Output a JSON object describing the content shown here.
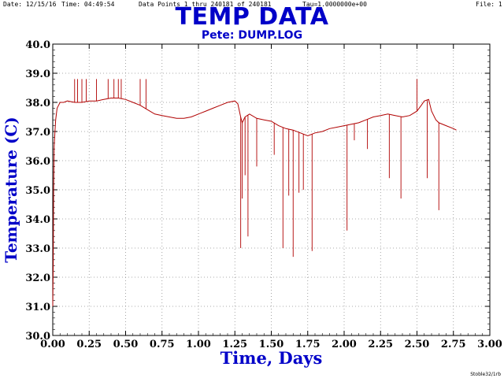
{
  "header": {
    "date": "Date: 12/15/16",
    "time": "Time: 04:49:54",
    "data_points": "Data Points 1 thru 240181 of 240181",
    "tau": "Tau=1.0000000e+00",
    "file": "File: 1"
  },
  "footer": {
    "signature": "Stoble32/1rb"
  },
  "colors": {
    "title": "#0000c8",
    "axis_label": "#0000c8",
    "line": "#b00000",
    "grid": "#909090"
  },
  "chart_data": {
    "type": "line",
    "title": "TEMP DATA",
    "subtitle": "Pete: DUMP.LOG",
    "xlabel": "Time, Days",
    "ylabel": "Temperature (C)",
    "xlim": [
      0,
      3
    ],
    "ylim": [
      30,
      40
    ],
    "grid": true,
    "x_ticks": [
      "0.00",
      "0.25",
      "0.50",
      "0.75",
      "1.00",
      "1.25",
      "1.50",
      "1.75",
      "2.00",
      "2.25",
      "2.50",
      "2.75",
      "3.00"
    ],
    "y_ticks": [
      "30.0",
      "31.0",
      "32.0",
      "33.0",
      "34.0",
      "35.0",
      "36.0",
      "37.0",
      "38.0",
      "39.0",
      "40.0"
    ],
    "series": [
      {
        "x": [
          0.0,
          0.003,
          0.006,
          0.01,
          0.015,
          0.02,
          0.025,
          0.03,
          0.04,
          0.05,
          0.075,
          0.1,
          0.15,
          0.2,
          0.25,
          0.3,
          0.35,
          0.4,
          0.45,
          0.5,
          0.55,
          0.6,
          0.65,
          0.7,
          0.75,
          0.8,
          0.85,
          0.9,
          0.95,
          1.0,
          1.05,
          1.1,
          1.15,
          1.2,
          1.25,
          1.27,
          1.29,
          1.3,
          1.32,
          1.35,
          1.4,
          1.45,
          1.5,
          1.55,
          1.6,
          1.65,
          1.7,
          1.75,
          1.8,
          1.85,
          1.9,
          1.95,
          2.0,
          2.05,
          2.1,
          2.15,
          2.2,
          2.25,
          2.3,
          2.35,
          2.4,
          2.45,
          2.5,
          2.53,
          2.55,
          2.58,
          2.6,
          2.63,
          2.65,
          2.7,
          2.75,
          2.77
        ],
        "values": [
          31.0,
          32.5,
          35.0,
          36.5,
          37.0,
          37.4,
          37.6,
          37.8,
          37.9,
          38.0,
          38.0,
          38.05,
          38.0,
          38.0,
          38.05,
          38.05,
          38.1,
          38.15,
          38.15,
          38.1,
          38.0,
          37.9,
          37.75,
          37.6,
          37.55,
          37.5,
          37.45,
          37.45,
          37.5,
          37.6,
          37.7,
          37.8,
          37.9,
          38.0,
          38.05,
          37.95,
          37.5,
          37.3,
          37.5,
          37.6,
          37.45,
          37.4,
          37.35,
          37.2,
          37.1,
          37.05,
          36.95,
          36.85,
          36.95,
          37.0,
          37.1,
          37.15,
          37.2,
          37.25,
          37.3,
          37.4,
          37.5,
          37.55,
          37.6,
          37.55,
          37.5,
          37.55,
          37.7,
          37.9,
          38.05,
          38.1,
          37.7,
          37.4,
          37.3,
          37.2,
          37.1,
          37.05
        ],
        "spikes": [
          [
            0.15,
            38.8
          ],
          [
            0.17,
            38.8
          ],
          [
            0.2,
            38.8
          ],
          [
            0.23,
            38.8
          ],
          [
            0.3,
            38.8
          ],
          [
            0.38,
            38.8
          ],
          [
            0.42,
            38.8
          ],
          [
            0.45,
            38.8
          ],
          [
            0.47,
            38.8
          ],
          [
            0.6,
            38.8
          ],
          [
            0.64,
            38.8
          ],
          [
            1.29,
            33.0
          ],
          [
            1.3,
            34.7
          ],
          [
            1.32,
            35.5
          ],
          [
            1.34,
            33.4
          ],
          [
            1.4,
            35.8
          ],
          [
            1.52,
            36.2
          ],
          [
            1.58,
            33.0
          ],
          [
            1.62,
            34.8
          ],
          [
            1.65,
            32.7
          ],
          [
            1.69,
            34.9
          ],
          [
            1.72,
            35.0
          ],
          [
            1.78,
            32.9
          ],
          [
            2.02,
            33.6
          ],
          [
            2.07,
            36.7
          ],
          [
            2.16,
            36.4
          ],
          [
            2.31,
            35.4
          ],
          [
            2.39,
            34.7
          ],
          [
            2.5,
            38.8
          ],
          [
            2.57,
            35.4
          ],
          [
            2.65,
            34.3
          ]
        ]
      }
    ]
  }
}
